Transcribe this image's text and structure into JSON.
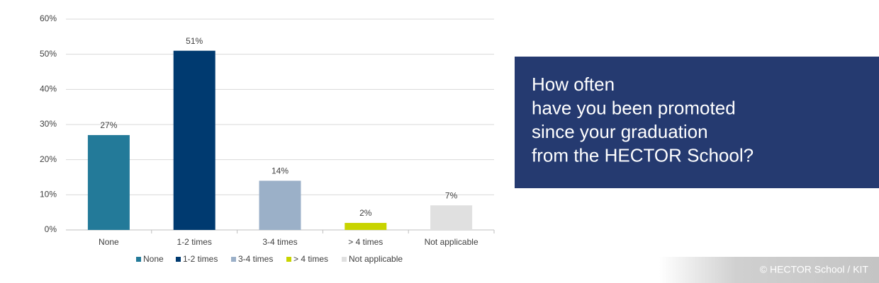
{
  "chart_data": {
    "type": "bar",
    "categories": [
      "None",
      "1-2 times",
      "3-4 times",
      "> 4 times",
      "Not applicable"
    ],
    "values": [
      27,
      51,
      14,
      2,
      7
    ],
    "value_labels": [
      "27%",
      "51%",
      "14%",
      "2%",
      "7%"
    ],
    "colors": [
      "#237a99",
      "#003a70",
      "#9bb0c8",
      "#c8d400",
      "#e0e0e0"
    ],
    "ylim": [
      0,
      60
    ],
    "yticks": [
      {
        "value": 0,
        "label": "0%"
      },
      {
        "value": 10,
        "label": "10%"
      },
      {
        "value": 20,
        "label": "20%"
      },
      {
        "value": 30,
        "label": "30%"
      },
      {
        "value": 40,
        "label": "40%"
      },
      {
        "value": 50,
        "label": "50%"
      },
      {
        "value": 60,
        "label": "60%"
      }
    ],
    "grid": true,
    "legend": "bottom"
  },
  "question": {
    "lines": [
      "How often",
      "have you been promoted",
      "since your graduation",
      "from the HECTOR School?"
    ]
  },
  "copyright": "© HECTOR School / KIT"
}
